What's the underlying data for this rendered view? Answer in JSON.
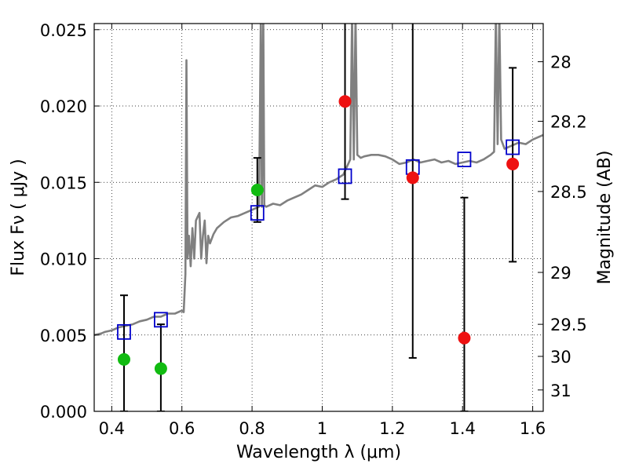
{
  "chart_data": {
    "type": "scatter",
    "xlabel": "Wavelength  λ (μm)",
    "ylabel": "Flux  Fν  ( μJy )",
    "ylabel_right": "Magnitude (AB)",
    "xlim": [
      0.35,
      1.63
    ],
    "ylim": [
      0.0,
      0.0254
    ],
    "grid": true,
    "x_ticks": [
      0.4,
      0.6,
      0.8,
      1.0,
      1.2,
      1.4,
      1.6
    ],
    "x_tick_labels": [
      "0.4",
      "0.6",
      "0.8",
      "1",
      "1.2",
      "1.4",
      "1.6"
    ],
    "y_ticks": [
      0.0,
      0.005,
      0.01,
      0.015,
      0.02,
      0.025
    ],
    "y_tick_labels": [
      "0.000",
      "0.005",
      "0.010",
      "0.015",
      "0.020",
      "0.025"
    ],
    "right_ticks": [
      {
        "label": "28",
        "flux": 0.0229
      },
      {
        "label": "28.2",
        "flux": 0.019
      },
      {
        "label": "28.5",
        "flux": 0.0144
      },
      {
        "label": "29",
        "flux": 0.0091
      },
      {
        "label": "29.5",
        "flux": 0.0057
      },
      {
        "label": "30",
        "flux": 0.0036
      },
      {
        "label": "31",
        "flux": 0.0014
      }
    ],
    "colors": {
      "model": "#808080",
      "green": "#11bb11",
      "red": "#ee1111",
      "box": "#0000cc",
      "errorbar": "#000000"
    },
    "series": [
      {
        "kind": "points-green",
        "x": [
          0.435,
          0.54,
          0.815
        ],
        "y": [
          0.0034,
          0.0028,
          0.0145
        ]
      },
      {
        "kind": "points-red",
        "x": [
          1.065,
          1.258,
          1.405,
          1.543
        ],
        "y": [
          0.0203,
          0.0153,
          0.0048,
          0.0162
        ]
      },
      {
        "kind": "boxes",
        "x": [
          0.435,
          0.54,
          0.815,
          1.065,
          1.258,
          1.405,
          1.543
        ],
        "y": [
          0.0052,
          0.006,
          0.013,
          0.0154,
          0.016,
          0.0165,
          0.0173
        ]
      },
      {
        "kind": "errorbars",
        "x": [
          0.435,
          0.54,
          0.815,
          1.065,
          1.258,
          1.405,
          1.543
        ],
        "ylow": [
          0.0,
          0.0,
          0.0124,
          0.0139,
          0.0035,
          0.0,
          0.0098
        ],
        "yhigh": [
          0.0076,
          0.0057,
          0.0166,
          0.026,
          0.026,
          0.014,
          0.0225
        ]
      },
      {
        "kind": "model-spectrum",
        "x": [
          0.35,
          0.37,
          0.38,
          0.4,
          0.42,
          0.44,
          0.46,
          0.48,
          0.5,
          0.52,
          0.54,
          0.56,
          0.58,
          0.6,
          0.605,
          0.61,
          0.613,
          0.616,
          0.62,
          0.625,
          0.63,
          0.635,
          0.64,
          0.65,
          0.655,
          0.66,
          0.665,
          0.67,
          0.675,
          0.68,
          0.69,
          0.7,
          0.72,
          0.74,
          0.76,
          0.78,
          0.8,
          0.81,
          0.82,
          0.825,
          0.828,
          0.832,
          0.835,
          0.84,
          0.86,
          0.88,
          0.9,
          0.92,
          0.94,
          0.96,
          0.98,
          1.0,
          1.02,
          1.04,
          1.06,
          1.08,
          1.085,
          1.09,
          1.095,
          1.1,
          1.11,
          1.12,
          1.14,
          1.16,
          1.18,
          1.2,
          1.22,
          1.24,
          1.26,
          1.28,
          1.3,
          1.32,
          1.34,
          1.36,
          1.38,
          1.4,
          1.42,
          1.44,
          1.46,
          1.48,
          1.49,
          1.495,
          1.5,
          1.505,
          1.51,
          1.52,
          1.54,
          1.56,
          1.58,
          1.6,
          1.63
        ],
        "y": [
          0.005,
          0.0051,
          0.0052,
          0.0053,
          0.0055,
          0.0056,
          0.0057,
          0.0059,
          0.006,
          0.0062,
          0.0062,
          0.0064,
          0.0064,
          0.0066,
          0.0065,
          0.009,
          0.023,
          0.01,
          0.0115,
          0.0095,
          0.012,
          0.01,
          0.0125,
          0.013,
          0.01,
          0.0115,
          0.0125,
          0.0097,
          0.0115,
          0.011,
          0.0116,
          0.012,
          0.0124,
          0.0127,
          0.0128,
          0.013,
          0.0132,
          0.0133,
          0.0134,
          0.026,
          0.0134,
          0.026,
          0.0135,
          0.0134,
          0.0136,
          0.0135,
          0.0138,
          0.014,
          0.0142,
          0.0145,
          0.0148,
          0.0147,
          0.015,
          0.0152,
          0.0155,
          0.0165,
          0.026,
          0.0165,
          0.026,
          0.0168,
          0.0166,
          0.0167,
          0.0168,
          0.0168,
          0.0167,
          0.0165,
          0.0162,
          0.0163,
          0.0165,
          0.0163,
          0.0164,
          0.0165,
          0.0163,
          0.0164,
          0.0162,
          0.0163,
          0.0164,
          0.0163,
          0.0165,
          0.0168,
          0.017,
          0.026,
          0.0175,
          0.026,
          0.0178,
          0.0172,
          0.0174,
          0.0176,
          0.0175,
          0.0178,
          0.0181
        ]
      }
    ]
  }
}
